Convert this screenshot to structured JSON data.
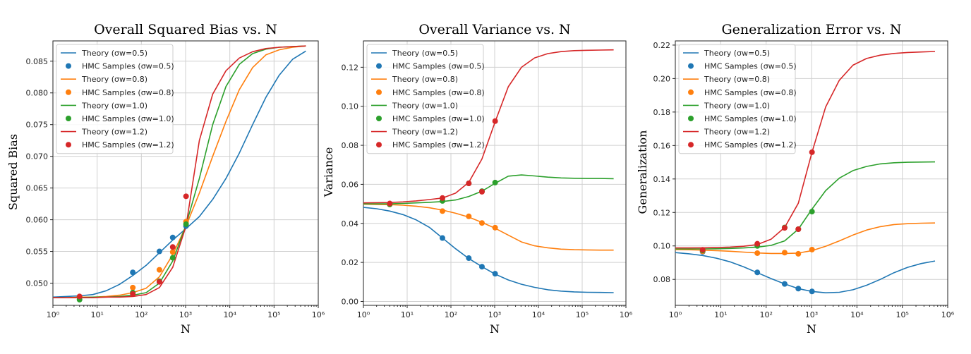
{
  "colors": {
    "s05": "#1f77b4",
    "s08": "#ff7f0e",
    "s10": "#2ca02c",
    "s12": "#d62728",
    "grid": "#d0d0d0",
    "axis": "#222222"
  },
  "legend_entries": [
    {
      "kind": "line",
      "label": "Theory (σw=0.5)",
      "color": "#1f77b4"
    },
    {
      "kind": "dot",
      "label": "HMC Samples (σw=0.5)",
      "color": "#1f77b4"
    },
    {
      "kind": "line",
      "label": "Theory (σw=0.8)",
      "color": "#ff7f0e"
    },
    {
      "kind": "dot",
      "label": "HMC Samples (σw=0.8)",
      "color": "#ff7f0e"
    },
    {
      "kind": "line",
      "label": "Theory (σw=1.0)",
      "color": "#2ca02c"
    },
    {
      "kind": "dot",
      "label": "HMC Samples (σw=1.0)",
      "color": "#2ca02c"
    },
    {
      "kind": "line",
      "label": "Theory (σw=1.2)",
      "color": "#d62728"
    },
    {
      "kind": "dot",
      "label": "HMC Samples (σw=1.2)",
      "color": "#d62728"
    }
  ],
  "chart_data": [
    {
      "type": "line",
      "title": "Overall Squared Bias vs. N",
      "xlabel": "N",
      "ylabel": "Squared Bias",
      "xscale": "log",
      "xlim": [
        1,
        1000000
      ],
      "ylim": [
        0.0465,
        0.0882
      ],
      "xticks": [
        1,
        10,
        100,
        1000,
        10000,
        100000,
        1000000
      ],
      "xtick_labels": [
        "10⁰",
        "10¹",
        "10²",
        "10³",
        "10⁴",
        "10⁵",
        "10⁶"
      ],
      "yticks": [
        0.05,
        0.055,
        0.06,
        0.065,
        0.07,
        0.075,
        0.08,
        0.085
      ],
      "ytick_labels": [
        "0.050",
        "0.055",
        "0.060",
        "0.065",
        "0.070",
        "0.075",
        "0.080",
        "0.085"
      ],
      "legend_position": "top-left",
      "theory_x": [
        1,
        2,
        4,
        8,
        16,
        32,
        64,
        128,
        256,
        512,
        1024,
        2048,
        4096,
        8192,
        16384,
        32768,
        65536,
        131072,
        262144,
        524288
      ],
      "series": [
        {
          "name": "Theory (σw=0.5)",
          "key": "s05",
          "values": [
            0.0478,
            0.0479,
            0.048,
            0.0482,
            0.0488,
            0.0498,
            0.0512,
            0.0528,
            0.0548,
            0.0568,
            0.0586,
            0.0605,
            0.0632,
            0.0665,
            0.0705,
            0.075,
            0.0793,
            0.0828,
            0.0853,
            0.0866
          ]
        },
        {
          "name": "Theory (σw=0.8)",
          "key": "s08",
          "values": [
            0.0477,
            0.0477,
            0.0478,
            0.0478,
            0.0479,
            0.0481,
            0.0485,
            0.0492,
            0.051,
            0.0545,
            0.059,
            0.0642,
            0.07,
            0.0755,
            0.0805,
            0.084,
            0.086,
            0.0868,
            0.0872,
            0.0874
          ]
        },
        {
          "name": "Theory (σw=1.0)",
          "key": "s10",
          "values": [
            0.0477,
            0.0477,
            0.0477,
            0.0478,
            0.0478,
            0.0479,
            0.0481,
            0.0485,
            0.05,
            0.0535,
            0.0592,
            0.0665,
            0.075,
            0.081,
            0.0845,
            0.0862,
            0.0869,
            0.0872,
            0.0873,
            0.0874
          ]
        },
        {
          "name": "Theory (σw=1.2)",
          "key": "s12",
          "values": [
            0.0477,
            0.0477,
            0.0477,
            0.0477,
            0.0478,
            0.0478,
            0.0479,
            0.0482,
            0.0493,
            0.0525,
            0.059,
            0.0725,
            0.0798,
            0.0835,
            0.0855,
            0.0865,
            0.087,
            0.0872,
            0.0873,
            0.0874
          ]
        }
      ],
      "hmc_x": [
        4,
        64,
        256,
        512,
        1024
      ],
      "hmc": [
        {
          "name": "HMC Samples (σw=0.5)",
          "key": "s05",
          "values": [
            0.0477,
            0.0517,
            0.055,
            0.0572,
            0.059
          ]
        },
        {
          "name": "HMC Samples (σw=0.8)",
          "key": "s08",
          "values": [
            0.0478,
            0.0493,
            0.0521,
            0.0549,
            0.0597
          ]
        },
        {
          "name": "HMC Samples (σw=1.0)",
          "key": "s10",
          "values": [
            0.0474,
            0.0485,
            0.0503,
            0.054,
            0.0593
          ]
        },
        {
          "name": "HMC Samples (σw=1.2)",
          "key": "s12",
          "values": [
            0.0479,
            0.0483,
            0.0502,
            0.0557,
            0.0637
          ]
        }
      ]
    },
    {
      "type": "line",
      "title": "Overall Variance vs. N",
      "xlabel": "N",
      "ylabel": "Variance",
      "xscale": "log",
      "xlim": [
        1,
        1000000
      ],
      "ylim": [
        -0.002,
        0.1335
      ],
      "xticks": [
        1,
        10,
        100,
        1000,
        10000,
        100000,
        1000000
      ],
      "xtick_labels": [
        "10⁰",
        "10¹",
        "10²",
        "10³",
        "10⁴",
        "10⁵",
        "10⁶"
      ],
      "yticks": [
        0.0,
        0.02,
        0.04,
        0.06,
        0.08,
        0.1,
        0.12
      ],
      "ytick_labels": [
        "0.00",
        "0.02",
        "0.04",
        "0.06",
        "0.08",
        "0.10",
        "0.12"
      ],
      "legend_position": "top-left",
      "theory_x": [
        1,
        2,
        4,
        8,
        16,
        32,
        64,
        128,
        256,
        512,
        1024,
        2048,
        4096,
        8192,
        16384,
        32768,
        65536,
        131072,
        262144,
        524288
      ],
      "series": [
        {
          "name": "Theory (σw=0.5)",
          "key": "s05",
          "values": [
            0.0482,
            0.0475,
            0.0463,
            0.0445,
            0.0418,
            0.038,
            0.0325,
            0.027,
            0.022,
            0.0178,
            0.014,
            0.011,
            0.0088,
            0.0072,
            0.006,
            0.0053,
            0.0049,
            0.0047,
            0.0046,
            0.0045
          ]
        },
        {
          "name": "Theory (σw=0.8)",
          "key": "s08",
          "values": [
            0.0498,
            0.0497,
            0.0496,
            0.0493,
            0.0488,
            0.048,
            0.0468,
            0.0452,
            0.0432,
            0.0405,
            0.0375,
            0.034,
            0.0305,
            0.0285,
            0.0275,
            0.0268,
            0.0265,
            0.0264,
            0.0263,
            0.0263
          ]
        },
        {
          "name": "Theory (σw=1.0)",
          "key": "s10",
          "values": [
            0.05,
            0.05,
            0.05,
            0.0502,
            0.0505,
            0.0508,
            0.0512,
            0.052,
            0.0538,
            0.0565,
            0.0605,
            0.0642,
            0.0648,
            0.0643,
            0.0637,
            0.0633,
            0.0631,
            0.063,
            0.063,
            0.0629
          ]
        },
        {
          "name": "Theory (σw=1.2)",
          "key": "s12",
          "values": [
            0.0505,
            0.0506,
            0.0507,
            0.051,
            0.0515,
            0.0522,
            0.053,
            0.0555,
            0.061,
            0.073,
            0.092,
            0.11,
            0.12,
            0.1248,
            0.127,
            0.128,
            0.1285,
            0.1287,
            0.1288,
            0.1289
          ]
        }
      ],
      "hmc_x": [
        4,
        64,
        256,
        512,
        1024
      ],
      "hmc": [
        {
          "name": "HMC Samples (σw=0.5)",
          "key": "s05",
          "values": [
            0.0497,
            0.0325,
            0.0222,
            0.0178,
            0.0142
          ]
        },
        {
          "name": "HMC Samples (σw=0.8)",
          "key": "s08",
          "values": [
            0.0497,
            0.0463,
            0.0436,
            0.0402,
            0.0378
          ]
        },
        {
          "name": "HMC Samples (σw=1.0)",
          "key": "s10",
          "values": [
            0.0498,
            0.0515,
            0.0605,
            0.0565,
            0.0609
          ]
        },
        {
          "name": "HMC Samples (σw=1.2)",
          "key": "s12",
          "values": [
            0.0502,
            0.053,
            0.0605,
            0.0562,
            0.0924
          ]
        }
      ]
    },
    {
      "type": "line",
      "title": "Generalization Error vs. N",
      "xlabel": "N",
      "ylabel": "Generalization",
      "xscale": "log",
      "xlim": [
        1,
        1000000
      ],
      "ylim": [
        0.0645,
        0.2225
      ],
      "xticks": [
        1,
        10,
        100,
        1000,
        10000,
        100000,
        1000000
      ],
      "xtick_labels": [
        "10⁰",
        "10¹",
        "10²",
        "10³",
        "10⁴",
        "10⁵",
        "10⁶"
      ],
      "yticks": [
        0.08,
        0.1,
        0.12,
        0.14,
        0.16,
        0.18,
        0.2,
        0.22
      ],
      "ytick_labels": [
        "0.08",
        "0.10",
        "0.12",
        "0.14",
        "0.16",
        "0.18",
        "0.20",
        "0.22"
      ],
      "legend_position": "top-left",
      "theory_x": [
        1,
        2,
        4,
        8,
        16,
        32,
        64,
        128,
        256,
        512,
        1024,
        2048,
        4096,
        8192,
        16384,
        32768,
        65536,
        131072,
        262144,
        524288
      ],
      "series": [
        {
          "name": "Theory (σw=0.5)",
          "key": "s05",
          "values": [
            0.096,
            0.0953,
            0.0943,
            0.0927,
            0.0905,
            0.0875,
            0.084,
            0.0805,
            0.0773,
            0.0745,
            0.0728,
            0.072,
            0.0723,
            0.0738,
            0.0765,
            0.08,
            0.084,
            0.0872,
            0.0895,
            0.091
          ]
        },
        {
          "name": "Theory (σw=0.8)",
          "key": "s08",
          "values": [
            0.0978,
            0.0977,
            0.0975,
            0.0972,
            0.0968,
            0.0963,
            0.0958,
            0.0955,
            0.0955,
            0.0957,
            0.0972,
            0.0998,
            0.103,
            0.1065,
            0.1095,
            0.1115,
            0.1128,
            0.1133,
            0.1136,
            0.1137
          ]
        },
        {
          "name": "Theory (σw=1.0)",
          "key": "s10",
          "values": [
            0.0982,
            0.0982,
            0.0982,
            0.0983,
            0.0985,
            0.0988,
            0.0993,
            0.1003,
            0.103,
            0.11,
            0.122,
            0.133,
            0.1405,
            0.145,
            0.1475,
            0.149,
            0.1497,
            0.15,
            0.1501,
            0.1502
          ]
        },
        {
          "name": "Theory (σw=1.2)",
          "key": "s12",
          "values": [
            0.0988,
            0.0988,
            0.0989,
            0.099,
            0.0993,
            0.0998,
            0.1008,
            0.104,
            0.111,
            0.1255,
            0.156,
            0.183,
            0.199,
            0.208,
            0.212,
            0.214,
            0.215,
            0.2156,
            0.2159,
            0.2162
          ]
        }
      ],
      "hmc_x": [
        4,
        64,
        256,
        512,
        1024
      ],
      "hmc": [
        {
          "name": "HMC Samples (σw=0.5)",
          "key": "s05",
          "values": [
            0.0965,
            0.0842,
            0.0773,
            0.0745,
            0.0728
          ]
        },
        {
          "name": "HMC Samples (σw=0.8)",
          "key": "s08",
          "values": [
            0.0968,
            0.0957,
            0.096,
            0.0953,
            0.0978
          ]
        },
        {
          "name": "HMC Samples (σw=1.0)",
          "key": "s10",
          "values": [
            0.0973,
            0.1,
            0.111,
            0.11,
            0.1205
          ]
        },
        {
          "name": "HMC Samples (σw=1.2)",
          "key": "s12",
          "values": [
            0.0977,
            0.1013,
            0.1108,
            0.11,
            0.156
          ]
        }
      ]
    }
  ]
}
